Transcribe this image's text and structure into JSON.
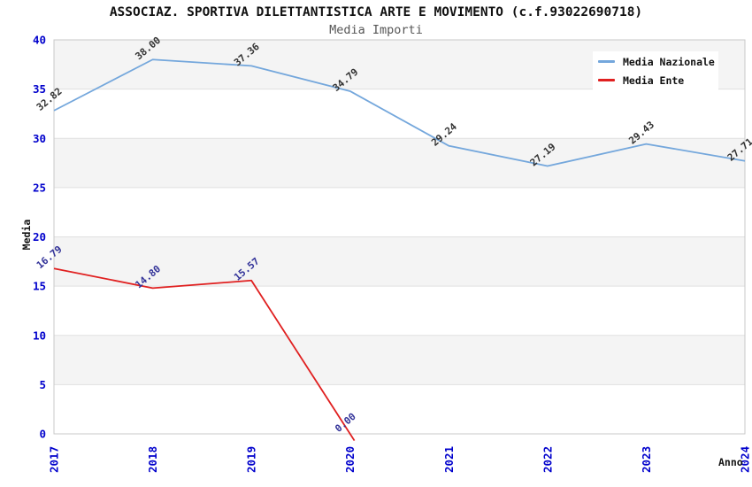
{
  "header": {
    "title": "ASSOCIAZ. SPORTIVA DILETTANTISTICA ARTE E MOVIMENTO (c.f.93022690718)",
    "subtitle": "Media Importi"
  },
  "chart_data": {
    "type": "line",
    "title": "ASSOCIAZ. SPORTIVA DILETTANTISTICA ARTE E MOVIMENTO (c.f.93022690718)",
    "subtitle": "Media Importi",
    "xlabel": "Anno",
    "ylabel": "Media",
    "x": [
      2017,
      2018,
      2019,
      2020,
      2021,
      2022,
      2023,
      2024
    ],
    "series": [
      {
        "name": "Media Nazionale",
        "color": "#74a7dc",
        "label_color": "#333333",
        "values": [
          32.82,
          38.0,
          37.36,
          34.79,
          29.24,
          27.19,
          29.43,
          27.71
        ]
      },
      {
        "name": "Media Ente",
        "color": "#e02020",
        "label_color": "#333399",
        "values": [
          16.79,
          14.8,
          15.57,
          0.0
        ],
        "overshoot": true
      }
    ],
    "ylim": [
      0,
      40
    ],
    "yticks": [
      0,
      5,
      10,
      15,
      20,
      25,
      30,
      35,
      40
    ],
    "grid": true,
    "legend_position": "top-right",
    "tick_label_color": "#0000cc",
    "band_colors": [
      "#ffffff",
      "#f4f4f4"
    ],
    "gridline_color": "#e0e0e0",
    "plot_border_color": "#c9c9c9"
  }
}
